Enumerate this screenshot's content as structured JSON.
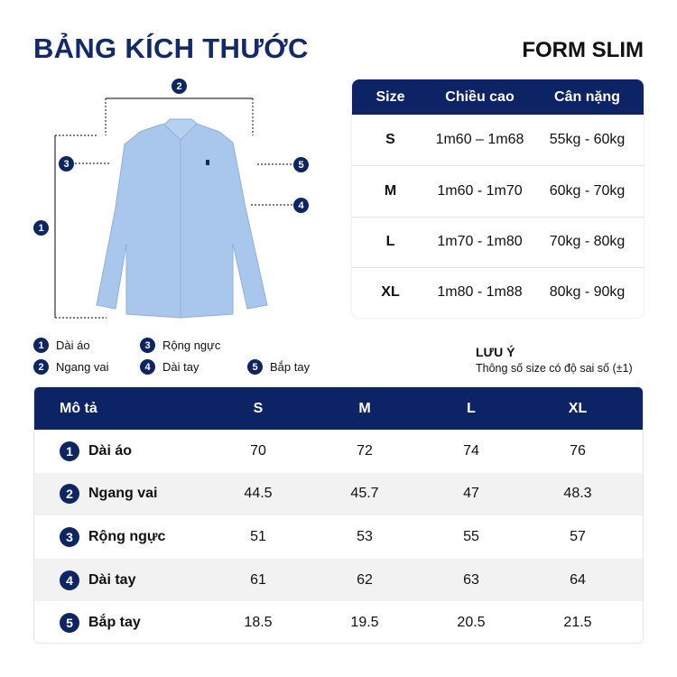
{
  "title": "BẢNG KÍCH THƯỚC",
  "form": "FORM SLIM",
  "diagram": {
    "badges": [
      "1",
      "2",
      "3",
      "4",
      "5"
    ]
  },
  "legend": [
    {
      "num": "1",
      "label": "Dài áo"
    },
    {
      "num": "2",
      "label": "Ngang vai"
    },
    {
      "num": "3",
      "label": "Rộng ngực"
    },
    {
      "num": "4",
      "label": "Dài tay"
    },
    {
      "num": "5",
      "label": "Bắp tay"
    }
  ],
  "size_table": {
    "headers": [
      "Size",
      "Chiều cao",
      "Cân nặng"
    ],
    "rows": [
      [
        "S",
        "1m60 – 1m68",
        "55kg - 60kg"
      ],
      [
        "M",
        "1m60 - 1m70",
        "60kg - 70kg"
      ],
      [
        "L",
        "1m70 - 1m80",
        "70kg - 80kg"
      ],
      [
        "XL",
        "1m80 - 1m88",
        "80kg - 90kg"
      ]
    ]
  },
  "note": {
    "title": "LƯU Ý",
    "text": "Thông số size có độ sai số (±1)"
  },
  "measure_table": {
    "headers": [
      "Mô tả",
      "S",
      "M",
      "L",
      "XL"
    ],
    "rows": [
      {
        "num": "1",
        "label": "Dài áo",
        "values": [
          "70",
          "72",
          "74",
          "76"
        ]
      },
      {
        "num": "2",
        "label": "Ngang vai",
        "values": [
          "44.5",
          "45.7",
          "47",
          "48.3"
        ]
      },
      {
        "num": "3",
        "label": "Rộng ngực",
        "values": [
          "51",
          "53",
          "55",
          "57"
        ]
      },
      {
        "num": "4",
        "label": "Dài tay",
        "values": [
          "61",
          "62",
          "63",
          "64"
        ]
      },
      {
        "num": "5",
        "label": "Bắp tay",
        "values": [
          "18.5",
          "19.5",
          "20.5",
          "21.5"
        ]
      }
    ]
  },
  "colors": {
    "navy": "#0c2366",
    "shirt": "#a9c6ec"
  }
}
